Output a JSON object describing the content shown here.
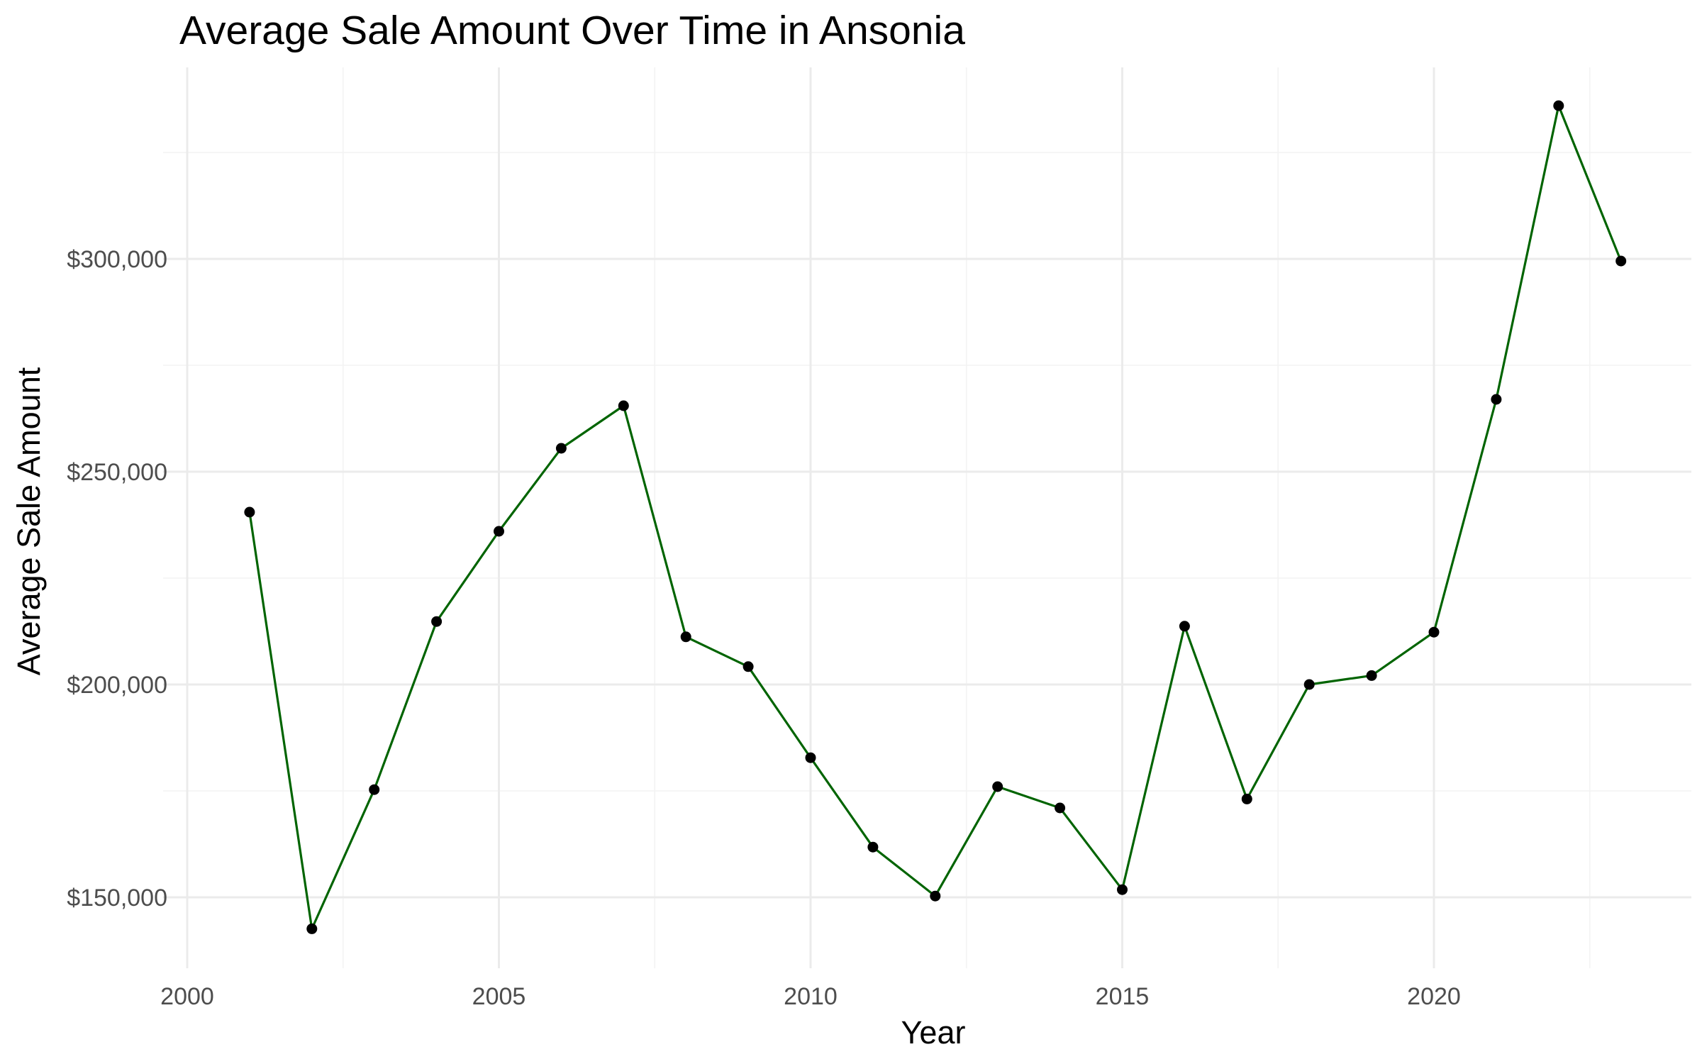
{
  "chart_data": {
    "type": "line",
    "title": "Average Sale Amount Over Time in Ansonia",
    "xlabel": "Year",
    "ylabel": "Average Sale Amount",
    "x": [
      2001,
      2002,
      2003,
      2004,
      2005,
      2006,
      2007,
      2008,
      2009,
      2010,
      2011,
      2012,
      2013,
      2014,
      2015,
      2016,
      2017,
      2018,
      2019,
      2020,
      2021,
      2022,
      2023
    ],
    "series": [
      {
        "values": [
          240500,
          142600,
          175300,
          214800,
          236000,
          255500,
          265500,
          211200,
          204200,
          182800,
          161800,
          150300,
          176000,
          171000,
          151800,
          213700,
          173100,
          200000,
          202100,
          212300,
          267000,
          336000,
          299500
        ],
        "line_color": "#006400",
        "point_color": "#000000"
      }
    ],
    "x_ticks": [
      2000,
      2005,
      2010,
      2015,
      2020
    ],
    "x_tick_labels": [
      "2000",
      "2005",
      "2010",
      "2015",
      "2020"
    ],
    "y_ticks": [
      150000,
      200000,
      250000,
      300000
    ],
    "y_tick_labels": [
      "$150,000",
      "$200,000",
      "$250,000",
      "$300,000"
    ],
    "xlim": [
      2000,
      2024
    ],
    "ylim": [
      130000,
      345000
    ],
    "grid": true,
    "legend": "none"
  }
}
